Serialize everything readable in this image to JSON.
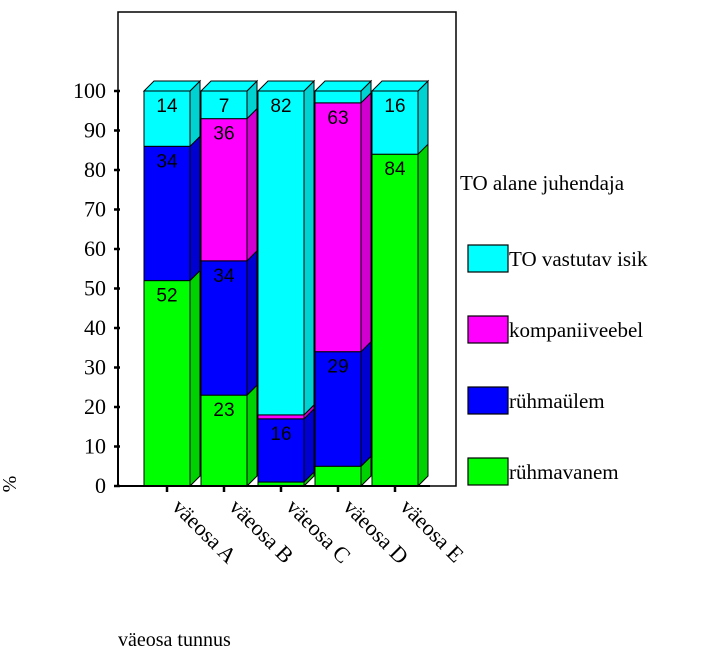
{
  "chart_data": {
    "type": "bar",
    "stacked": true,
    "percent_stacked": true,
    "categories": [
      "väeosa A",
      "väeosa B",
      "väeosa C",
      "väeosa D",
      "väeosa E"
    ],
    "series": [
      {
        "name": "rühmavanem",
        "values": [
          52,
          23,
          1,
          5,
          84
        ],
        "labels": [
          "52",
          "23",
          "",
          "",
          "84"
        ],
        "color": "#00ff00"
      },
      {
        "name": "rühmaülem",
        "values": [
          34,
          34,
          16,
          29,
          0
        ],
        "labels": [
          "34",
          "34",
          "16",
          "29",
          ""
        ],
        "color": "#0000ff"
      },
      {
        "name": "kompaniiveebel",
        "values": [
          0,
          36,
          1,
          63,
          0
        ],
        "labels": [
          "",
          "36",
          "",
          "63",
          ""
        ],
        "color": "#ff00ff"
      },
      {
        "name": "TO vastutav isik",
        "values": [
          14,
          7,
          82,
          3,
          16
        ],
        "labels": [
          "14",
          "7",
          "82",
          "",
          "16"
        ],
        "color": "#00ffff"
      }
    ],
    "ylabel": "%",
    "xlabel": "väeosa tunnus",
    "ylim": [
      0,
      100
    ],
    "yticks": [
      0,
      10,
      20,
      30,
      40,
      50,
      60,
      70,
      80,
      90,
      100
    ],
    "legend_title": "TO alane juhendaja",
    "legend_placement": "right",
    "grid": false,
    "three_d": true
  }
}
